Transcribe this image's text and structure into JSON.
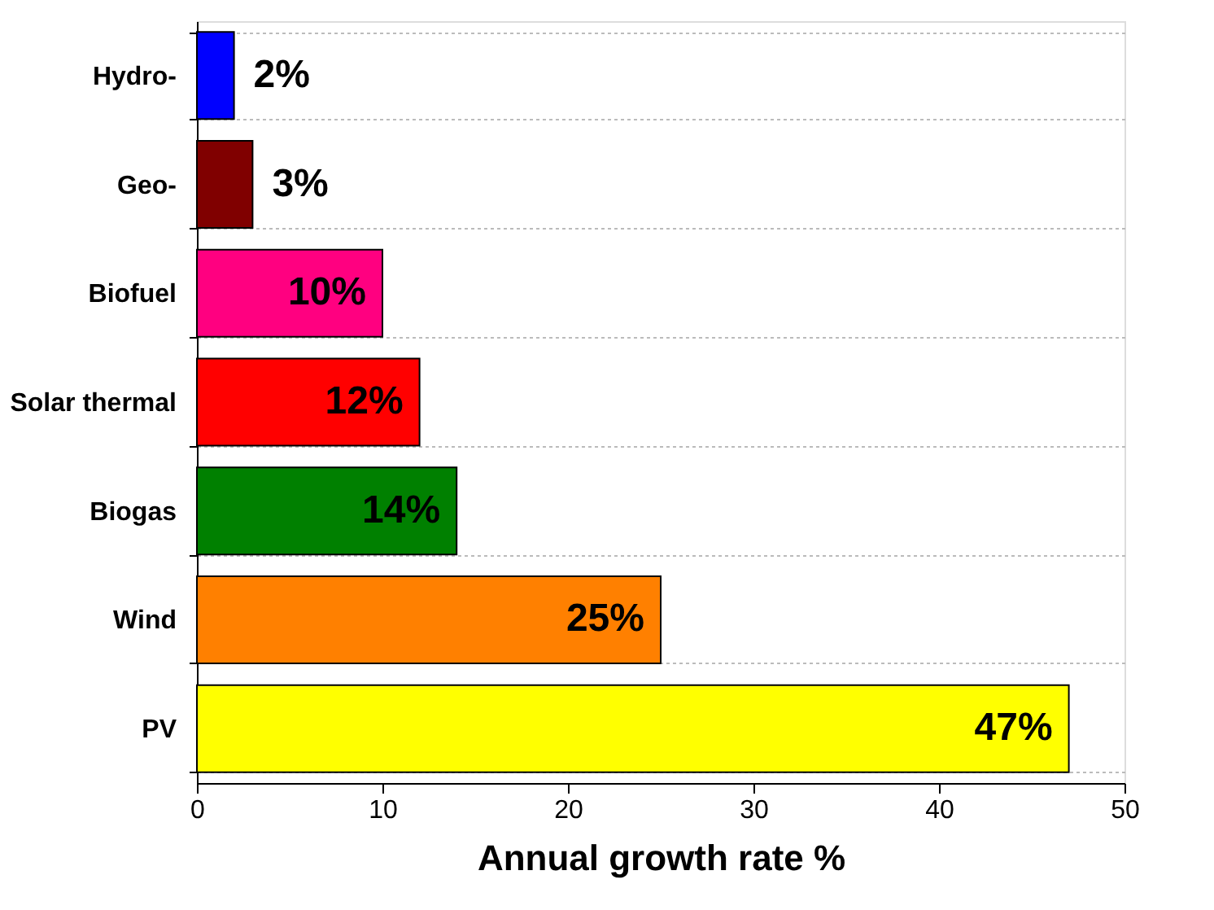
{
  "chart_data": {
    "type": "bar",
    "orientation": "horizontal",
    "xlabel": "Annual growth rate %",
    "categories": [
      "Hydro-",
      "Geo-",
      "Biofuel",
      "Solar thermal",
      "Biogas",
      "Wind",
      "PV"
    ],
    "values": [
      2,
      3,
      10,
      12,
      14,
      25,
      47
    ],
    "colors": [
      "#0000ff",
      "#800000",
      "#ff0080",
      "#ff0000",
      "#008000",
      "#ff8000",
      "#ffff00"
    ],
    "value_labels": [
      "2%",
      "3%",
      "10%",
      "12%",
      "14%",
      "25%",
      "47%"
    ],
    "xlim": [
      0,
      50
    ],
    "xticks": [
      0,
      10,
      20,
      30,
      40,
      50
    ],
    "grid": "y"
  }
}
